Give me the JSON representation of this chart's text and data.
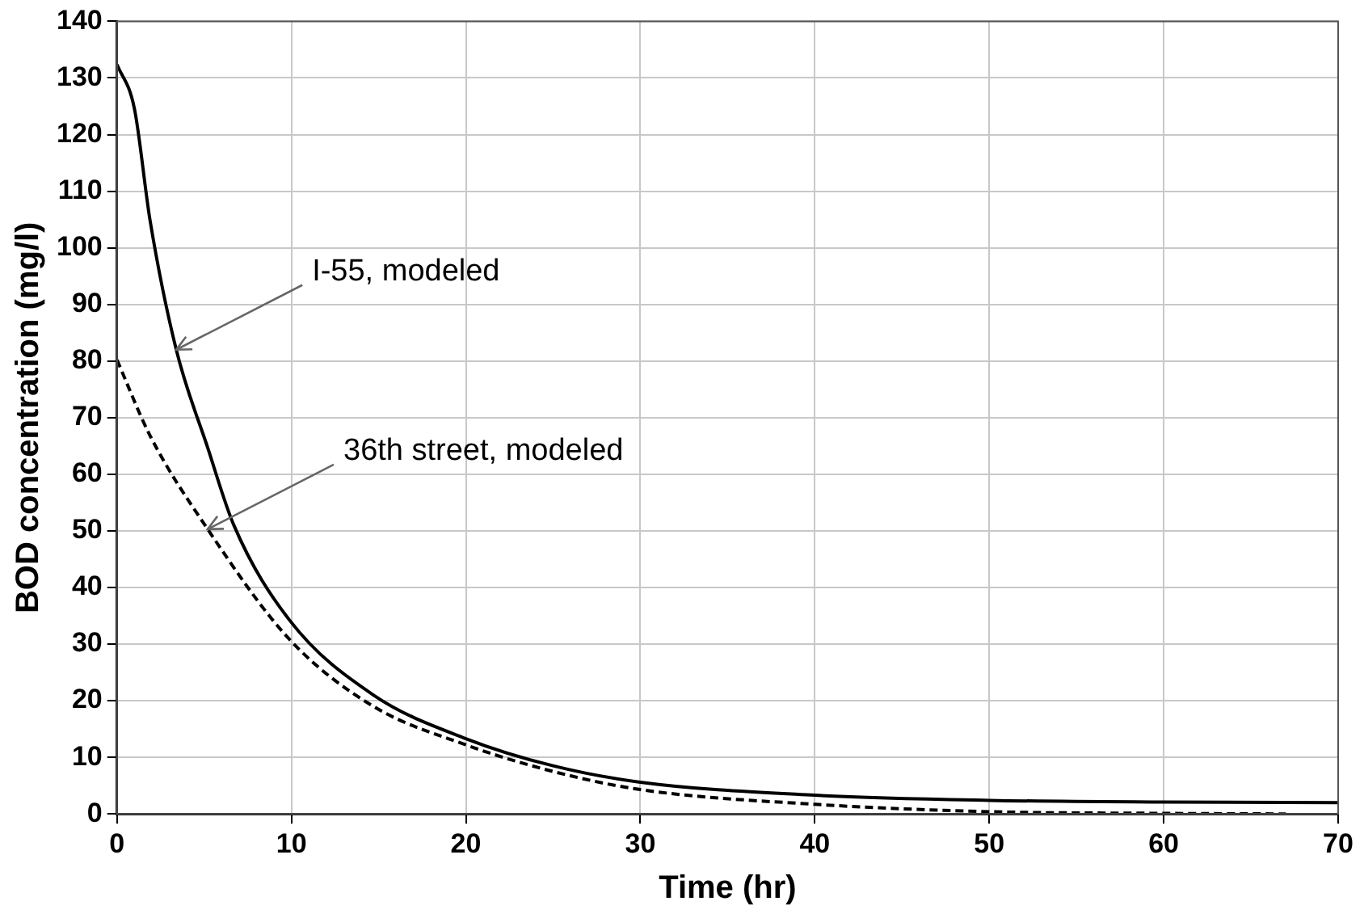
{
  "chart_data": {
    "type": "line",
    "xlabel": "Time (hr)",
    "ylabel": "BOD concentration (mg/l)",
    "xlim": [
      0,
      70
    ],
    "xticks": [
      0,
      10,
      20,
      30,
      40,
      50,
      60,
      70
    ],
    "ylim": [
      0,
      140
    ],
    "yticks": [
      0,
      10,
      20,
      30,
      40,
      50,
      60,
      70,
      80,
      90,
      100,
      110,
      120,
      130,
      140
    ],
    "grid": true,
    "marker": "none",
    "series": [
      {
        "color": "#000000",
        "line_style": "solid",
        "x": [
          0,
          1,
          1.9,
          3.4,
          5.2,
          6.7,
          9.9,
          14.7,
          20,
          25,
          30,
          40,
          50,
          60,
          70
        ],
        "values": [
          132.4,
          124.6,
          104.8,
          82,
          64.7,
          51,
          34.2,
          21,
          13.3,
          8.5,
          5.6,
          3.3,
          2.4,
          2.1,
          2
        ]
      },
      {
        "color": "#000000",
        "line_style": "dashed",
        "x": [
          0,
          1.9,
          5.2,
          9.9,
          14.7,
          20,
          25,
          30,
          40,
          50,
          60,
          67
        ],
        "values": [
          80.2,
          66.8,
          50.3,
          30.8,
          19,
          12.2,
          7.5,
          4.3,
          1.7,
          0.4,
          0.1,
          0
        ]
      }
    ],
    "annotations": [
      {
        "text": "I-55, modeled",
        "x": 3.4,
        "y": 82
      },
      {
        "text": "36th street, modeled",
        "x": 5.2,
        "y": 50.3
      }
    ]
  }
}
